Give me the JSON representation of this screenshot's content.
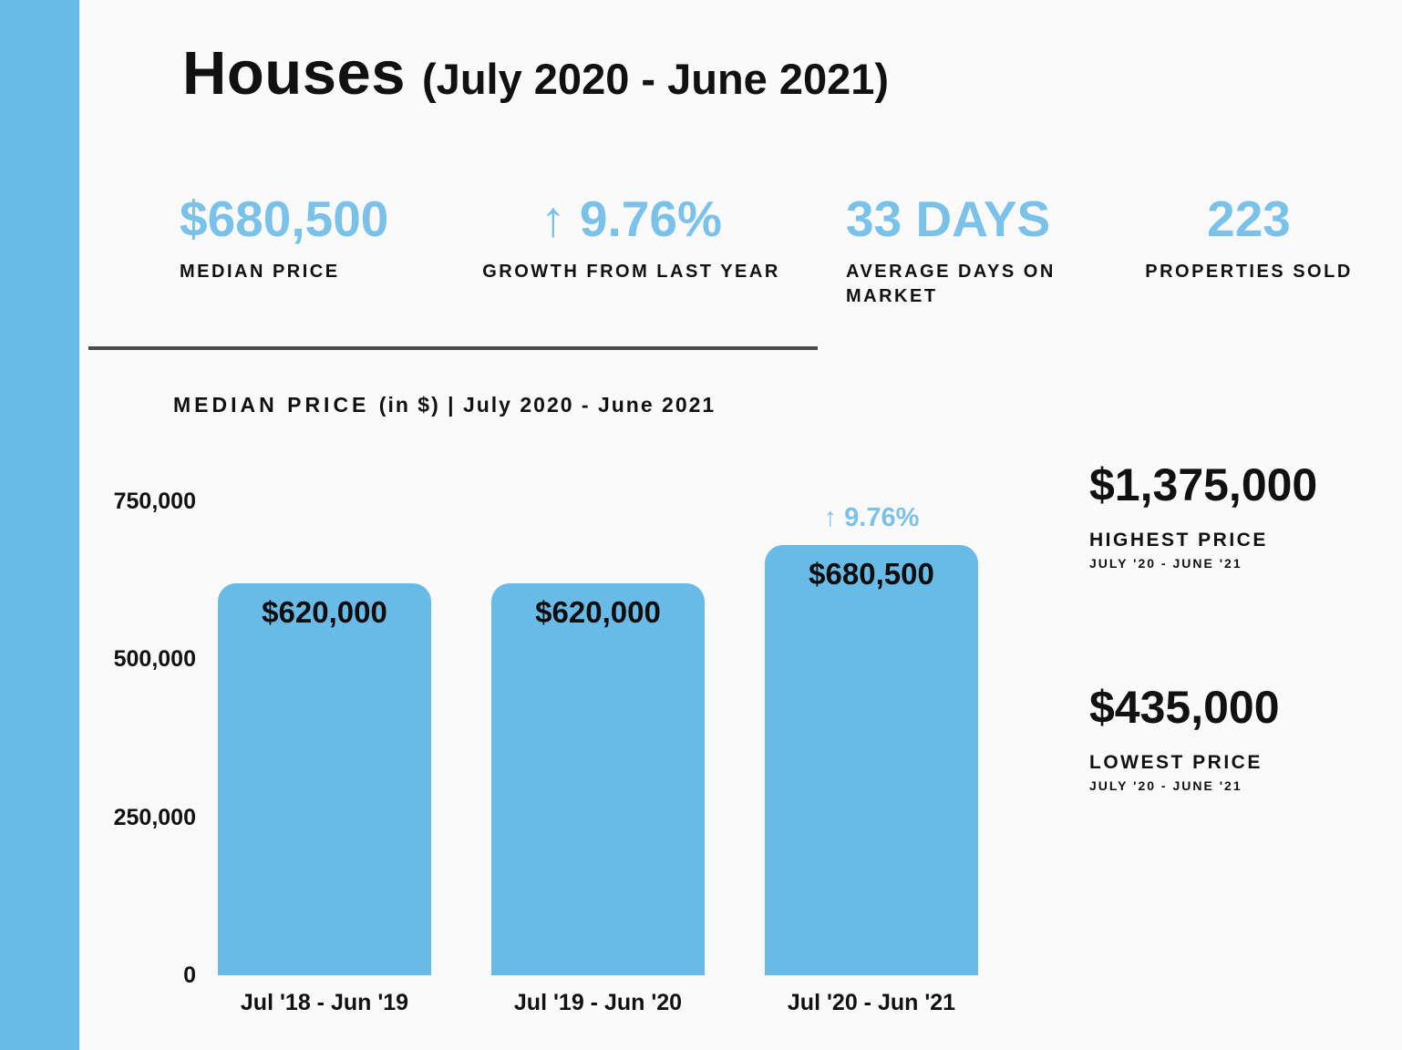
{
  "theme": {
    "accent": "#69BBE7",
    "accent_text": "#7AC2EA",
    "background": "#FAFAFA",
    "divider": "#4A4A4A",
    "ink": "#111111"
  },
  "header": {
    "title": "Houses",
    "subtitle": "(July 2020 - June 2021)"
  },
  "stats": [
    {
      "value": "$680,500",
      "label": "MEDIAN PRICE"
    },
    {
      "value": "↑ 9.76%",
      "label": "GROWTH FROM LAST YEAR"
    },
    {
      "value": "33 DAYS",
      "label": "AVERAGE DAYS ON MARKET"
    },
    {
      "value": "223",
      "label": "PROPERTIES SOLD"
    }
  ],
  "chart_data": {
    "type": "bar",
    "title": "MEDIAN PRICE",
    "subtitle": "(in $) | July 2020 - June 2021",
    "categories": [
      "Jul '18 - Jun '19",
      "Jul '19 - Jun '20",
      "Jul '20 - Jun '21"
    ],
    "values": [
      620000,
      620000,
      680500
    ],
    "bar_labels": [
      "$620,000",
      "$620,000",
      "$680,500"
    ],
    "annotation": {
      "text": "↑ 9.76%",
      "bar_index": 2
    },
    "yticks": [
      750000,
      500000,
      250000,
      0
    ],
    "ytick_labels": [
      "750,000",
      "500,000",
      "250,000",
      "0"
    ],
    "ylim": [
      0,
      750000
    ],
    "grid": false,
    "legend": false,
    "bar_color": "#69BBE7"
  },
  "side_stats": [
    {
      "value": "$1,375,000",
      "label": "HIGHEST PRICE",
      "sublabel": "JULY '20 - JUNE '21"
    },
    {
      "value": "$435,000",
      "label": "LOWEST PRICE",
      "sublabel": "JULY '20 - JUNE '21"
    }
  ]
}
